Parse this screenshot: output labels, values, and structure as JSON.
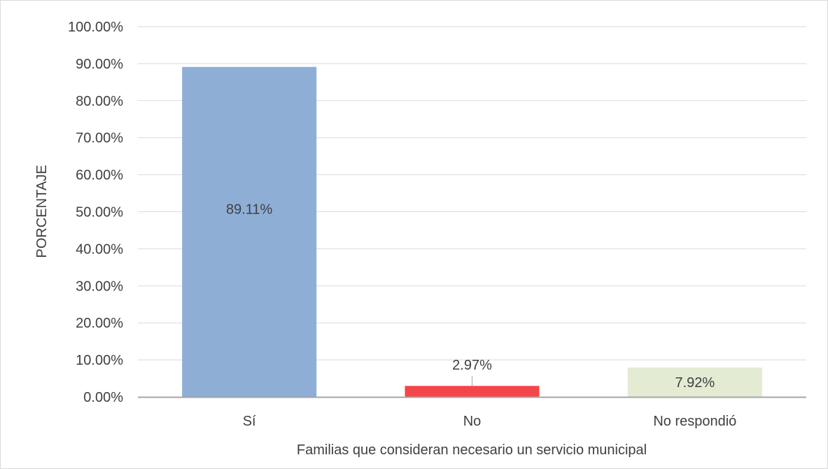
{
  "chart_data": {
    "type": "bar",
    "categories": [
      "Sí",
      "No",
      "No respondió"
    ],
    "values": [
      89.11,
      2.97,
      7.92
    ],
    "data_labels": [
      "89.11%",
      "2.97%",
      "7.92%"
    ],
    "colors": [
      "#8eaed6",
      "#f4454a",
      "#e3ebd3"
    ],
    "xlabel": "Familias que consideran necesario un servicio municipal",
    "ylabel": "PORCENTAJE",
    "ylim": [
      0,
      100
    ],
    "yticks": [
      0,
      10,
      20,
      30,
      40,
      50,
      60,
      70,
      80,
      90,
      100
    ],
    "ytick_labels": [
      "0.00%",
      "10.00%",
      "20.00%",
      "30.00%",
      "40.00%",
      "50.00%",
      "60.00%",
      "70.00%",
      "80.00%",
      "90.00%",
      "100.00%"
    ],
    "grid": true,
    "gridline_color": "#d9d9d9",
    "axis_color": "#a6a6a6"
  }
}
